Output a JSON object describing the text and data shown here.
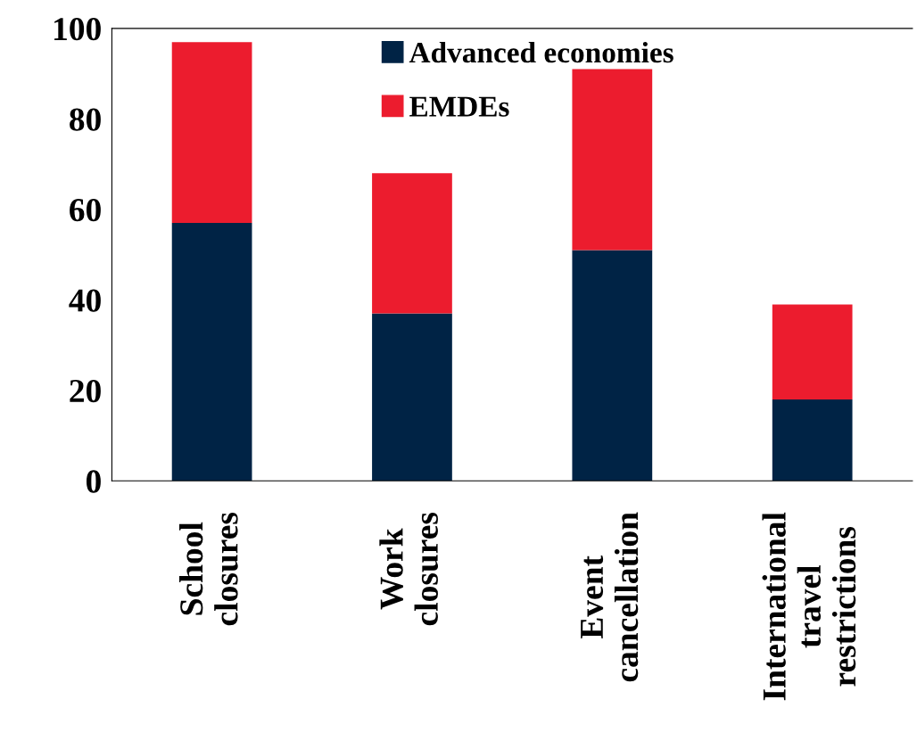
{
  "chart_data": {
    "type": "bar",
    "stacked": true,
    "categories": [
      "School\nclosures",
      "Work\nclosures",
      "Event\ncancellation",
      "International\ntravel\nrestrictions"
    ],
    "series": [
      {
        "name": "Advanced economies",
        "color": "#002345",
        "values": [
          57,
          37,
          51,
          18
        ]
      },
      {
        "name": "EMDEs",
        "color": "#ec1c2e",
        "values": [
          40,
          31,
          40,
          21
        ]
      }
    ],
    "ylim": [
      0,
      100
    ],
    "yticks": [
      0,
      20,
      40,
      60,
      80,
      100
    ],
    "grid": false,
    "legend": "top"
  }
}
